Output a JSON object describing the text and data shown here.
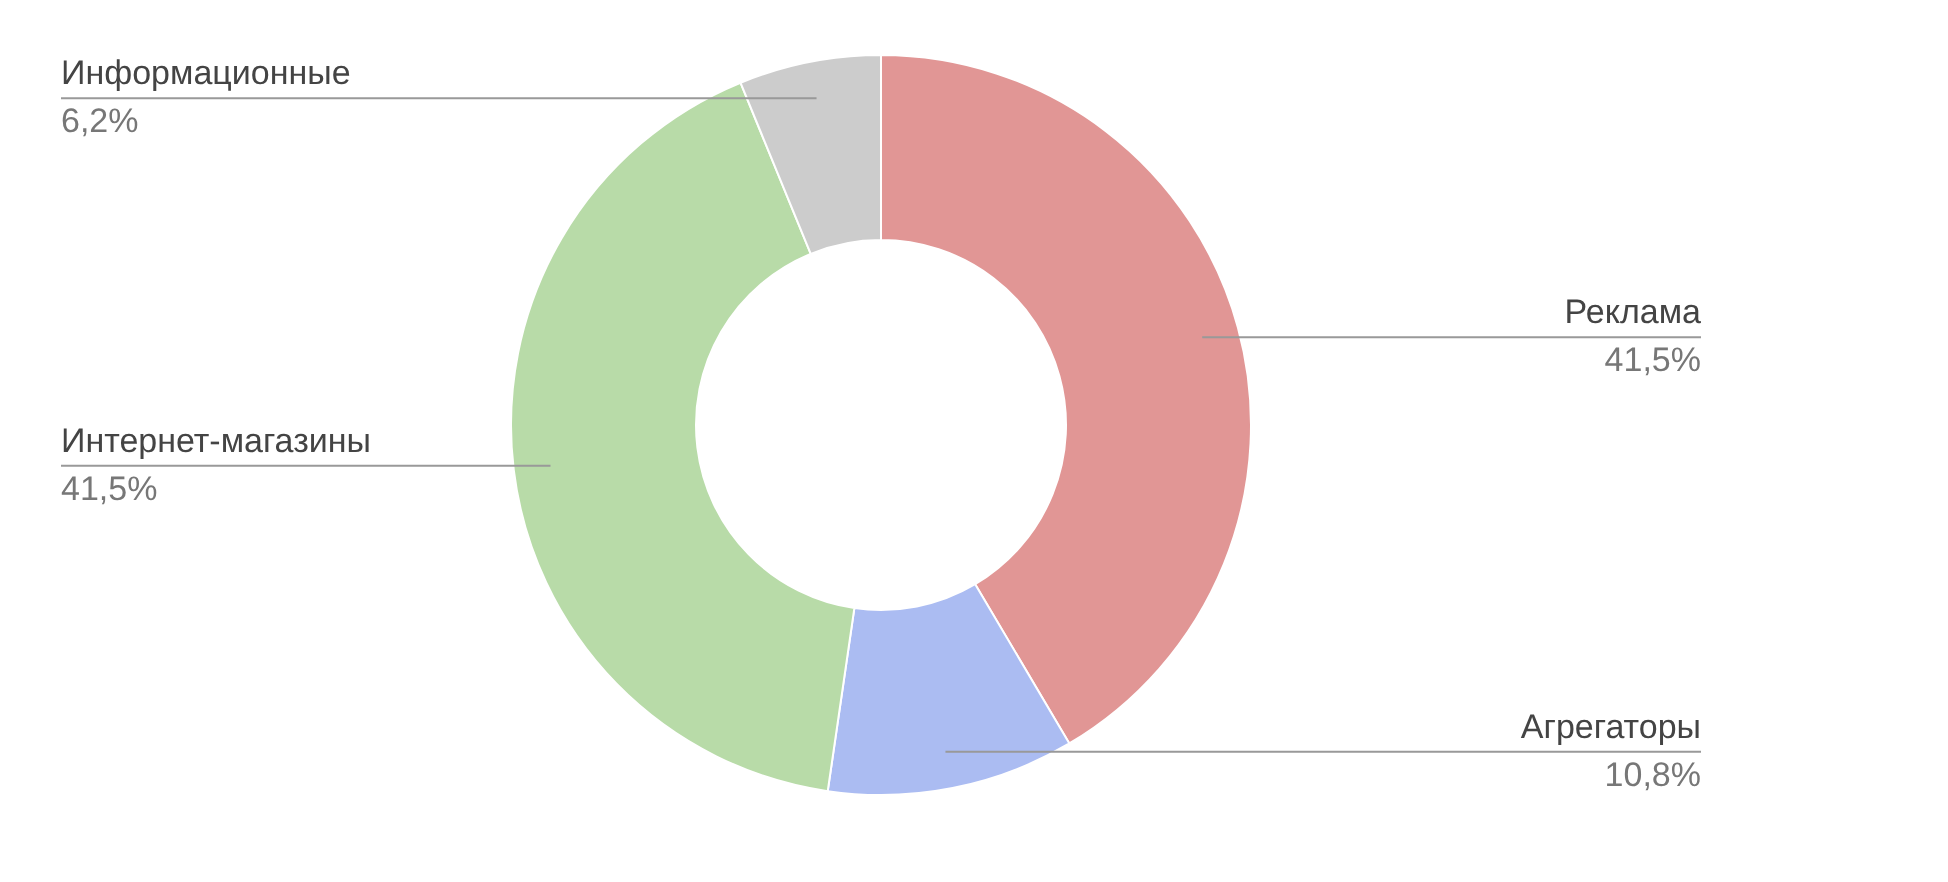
{
  "chart_data": {
    "type": "donut",
    "categories": [
      "Реклама",
      "Агрегаторы",
      "Интернет-магазины",
      "Информационные"
    ],
    "values": [
      41.5,
      10.8,
      41.5,
      6.2
    ],
    "colors": [
      "#e19695",
      "#abbcf2",
      "#b8dba8",
      "#cccccc"
    ],
    "value_labels": [
      "41,5%",
      "10,8%",
      "41,5%",
      "6,2%"
    ]
  }
}
